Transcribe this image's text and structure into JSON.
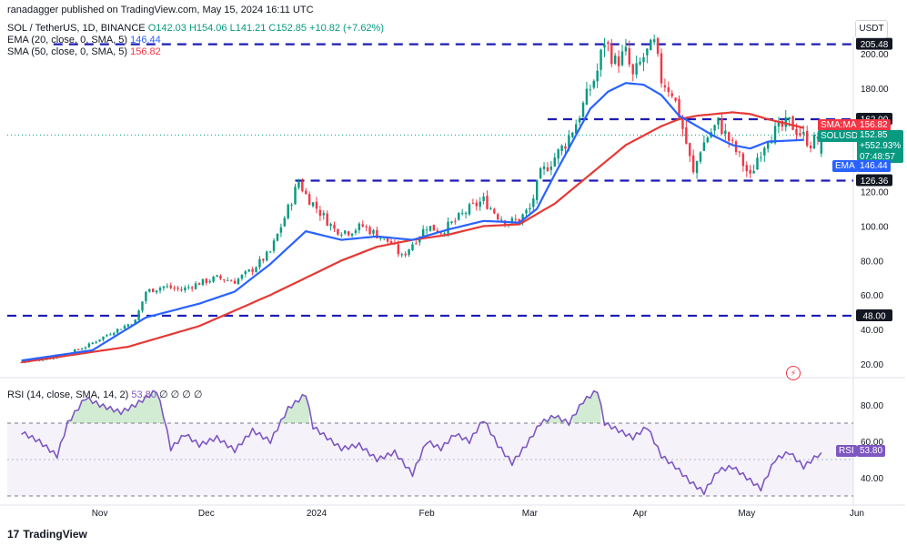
{
  "header": {
    "publisher": "ranadagger published on TradingView.com, May 15, 2024 16:11 UTC",
    "symbol": "SOL / TetherUS, 1D, BINANCE",
    "ohlc": "O142.03 H154.06 L141.21 C152.85 +10.82 (+7.62%)",
    "ema_label": "EMA (20, close, 0, SMA, 5)",
    "ema_value": "146.44",
    "sma_label": "SMA (50, close, 0, SMA, 5)",
    "sma_value": "156.82",
    "rsi_label": "RSI (14, close, SMA, 14, 2)",
    "rsi_value": "53.80",
    "rsi_extra": "∅ ∅ ∅ ∅",
    "currency": "USDT",
    "brand": "TradingView"
  },
  "tags": {
    "sma_ma": "SMA:MA",
    "sma_val": "156.82",
    "symbol_tag": "SOLUSDT",
    "price": "152.85",
    "change": "+552.93%",
    "timer": "07:48:57",
    "ema": "EMA",
    "ema_val": "146.44",
    "rsi": "RSI",
    "rsi_val": "53.80"
  },
  "colors": {
    "up": "#089981",
    "down": "#f23645",
    "ema": "#2962ff",
    "sma": "#e53935",
    "rsi": "#7e57c2",
    "level": "#1c1cb5"
  },
  "chart_data": [
    {
      "type": "candlestick",
      "title": "SOL / TetherUS, 1D, BINANCE",
      "y_axis_ticks": [
        20,
        40,
        60,
        80,
        100,
        120,
        140,
        160,
        180,
        200
      ],
      "y_tick_labels": [
        "20.00",
        "40.00",
        "60.00",
        "80.00",
        "100.00",
        "120.00",
        "140.00",
        "160.00",
        "180.00",
        "200.00"
      ],
      "ylim": [
        5,
        213
      ],
      "x_tick_labels": [
        "Nov",
        "Dec",
        "2024",
        "Feb",
        "Mar",
        "Apr",
        "May",
        "Jun"
      ],
      "x_tick_days": [
        22,
        52,
        83,
        114,
        143,
        174,
        204,
        235
      ],
      "horizontal_levels": [
        {
          "value": 205.48,
          "label": "205.48"
        },
        {
          "value": 162.0,
          "label": "162.00"
        },
        {
          "value": 126.36,
          "label": "126.36"
        },
        {
          "value": 48.0,
          "label": "48.00"
        }
      ],
      "series": [
        {
          "name": "EMA (20)",
          "last": 146.44,
          "keypoints": [
            [
              0,
              22
            ],
            [
              20,
              28
            ],
            [
              35,
              47
            ],
            [
              50,
              55
            ],
            [
              60,
              62
            ],
            [
              70,
              78
            ],
            [
              80,
              97
            ],
            [
              90,
              92
            ],
            [
              100,
              94
            ],
            [
              110,
              92
            ],
            [
              120,
              98
            ],
            [
              130,
              103
            ],
            [
              140,
              102
            ],
            [
              145,
              110
            ],
            [
              150,
              130
            ],
            [
              160,
              168
            ],
            [
              165,
              178
            ],
            [
              170,
              183
            ],
            [
              175,
              182
            ],
            [
              180,
              176
            ],
            [
              185,
              164
            ],
            [
              190,
              158
            ],
            [
              195,
              152
            ],
            [
              200,
              147
            ],
            [
              205,
              145
            ],
            [
              210,
              149
            ],
            [
              220,
              150
            ]
          ]
        },
        {
          "name": "SMA (50)",
          "last": 156.82,
          "keypoints": [
            [
              0,
              21
            ],
            [
              30,
              30
            ],
            [
              50,
              42
            ],
            [
              70,
              60
            ],
            [
              90,
              80
            ],
            [
              100,
              88
            ],
            [
              110,
              92
            ],
            [
              120,
              95
            ],
            [
              130,
              100
            ],
            [
              140,
              101
            ],
            [
              150,
              113
            ],
            [
              160,
              130
            ],
            [
              170,
              147
            ],
            [
              180,
              158
            ],
            [
              185,
              162
            ],
            [
              190,
              164
            ],
            [
              195,
              165
            ],
            [
              200,
              166
            ],
            [
              205,
              165
            ],
            [
              210,
              162
            ],
            [
              220,
              157
            ]
          ]
        }
      ],
      "candle_path": [
        [
          0,
          21
        ],
        [
          10,
          24
        ],
        [
          18,
          30
        ],
        [
          25,
          38
        ],
        [
          32,
          45
        ],
        [
          35,
          62
        ],
        [
          40,
          65
        ],
        [
          45,
          63
        ],
        [
          50,
          67
        ],
        [
          55,
          70
        ],
        [
          60,
          68
        ],
        [
          65,
          75
        ],
        [
          70,
          85
        ],
        [
          75,
          110
        ],
        [
          78,
          126
        ],
        [
          80,
          118
        ],
        [
          84,
          108
        ],
        [
          88,
          98
        ],
        [
          92,
          97
        ],
        [
          96,
          100
        ],
        [
          100,
          95
        ],
        [
          104,
          90
        ],
        [
          107,
          82
        ],
        [
          110,
          90
        ],
        [
          114,
          100
        ],
        [
          118,
          97
        ],
        [
          122,
          103
        ],
        [
          126,
          110
        ],
        [
          130,
          115
        ],
        [
          134,
          106
        ],
        [
          137,
          102
        ],
        [
          140,
          104
        ],
        [
          143,
          110
        ],
        [
          146,
          130
        ],
        [
          150,
          140
        ],
        [
          153,
          148
        ],
        [
          156,
          160
        ],
        [
          159,
          175
        ],
        [
          162,
          190
        ],
        [
          164,
          208
        ],
        [
          167,
          195
        ],
        [
          170,
          200
        ],
        [
          172,
          186
        ],
        [
          175,
          198
        ],
        [
          178,
          205
        ],
        [
          180,
          185
        ],
        [
          183,
          178
        ],
        [
          185,
          165
        ],
        [
          187,
          148
        ],
        [
          189,
          130
        ],
        [
          191,
          145
        ],
        [
          193,
          152
        ],
        [
          196,
          160
        ],
        [
          199,
          150
        ],
        [
          202,
          140
        ],
        [
          205,
          128
        ],
        [
          207,
          140
        ],
        [
          210,
          152
        ],
        [
          213,
          156
        ],
        [
          216,
          160
        ],
        [
          219,
          154
        ],
        [
          222,
          148
        ],
        [
          225,
          153
        ]
      ]
    },
    {
      "type": "line",
      "title": "RSI (14, close, SMA, 14, 2)",
      "y_axis_ticks": [
        40,
        60,
        80
      ],
      "y_tick_labels": [
        "40.00",
        "60.00",
        "80.00"
      ],
      "ylim": [
        28,
        92
      ],
      "band": [
        30,
        70
      ],
      "midline": 50,
      "series": [
        {
          "name": "RSI",
          "last": 53.8,
          "keypoints": [
            [
              0,
              65
            ],
            [
              5,
              60
            ],
            [
              10,
              52
            ],
            [
              13,
              70
            ],
            [
              18,
              84
            ],
            [
              22,
              80
            ],
            [
              28,
              76
            ],
            [
              32,
              80
            ],
            [
              38,
              88
            ],
            [
              40,
              74
            ],
            [
              42,
              56
            ],
            [
              46,
              64
            ],
            [
              50,
              58
            ],
            [
              55,
              62
            ],
            [
              60,
              55
            ],
            [
              65,
              66
            ],
            [
              70,
              60
            ],
            [
              75,
              78
            ],
            [
              80,
              86
            ],
            [
              82,
              68
            ],
            [
              86,
              62
            ],
            [
              90,
              56
            ],
            [
              95,
              58
            ],
            [
              100,
              50
            ],
            [
              105,
              54
            ],
            [
              110,
              42
            ],
            [
              114,
              60
            ],
            [
              118,
              56
            ],
            [
              122,
              64
            ],
            [
              126,
              60
            ],
            [
              130,
              72
            ],
            [
              134,
              58
            ],
            [
              138,
              48
            ],
            [
              142,
              58
            ],
            [
              146,
              70
            ],
            [
              150,
              74
            ],
            [
              154,
              70
            ],
            [
              158,
              82
            ],
            [
              162,
              88
            ],
            [
              164,
              70
            ],
            [
              168,
              66
            ],
            [
              172,
              62
            ],
            [
              176,
              68
            ],
            [
              180,
              52
            ],
            [
              184,
              46
            ],
            [
              188,
              38
            ],
            [
              192,
              32
            ],
            [
              196,
              44
            ],
            [
              200,
              46
            ],
            [
              204,
              40
            ],
            [
              208,
              34
            ],
            [
              212,
              50
            ],
            [
              216,
              54
            ],
            [
              220,
              46
            ],
            [
              225,
              54
            ]
          ]
        }
      ]
    }
  ]
}
